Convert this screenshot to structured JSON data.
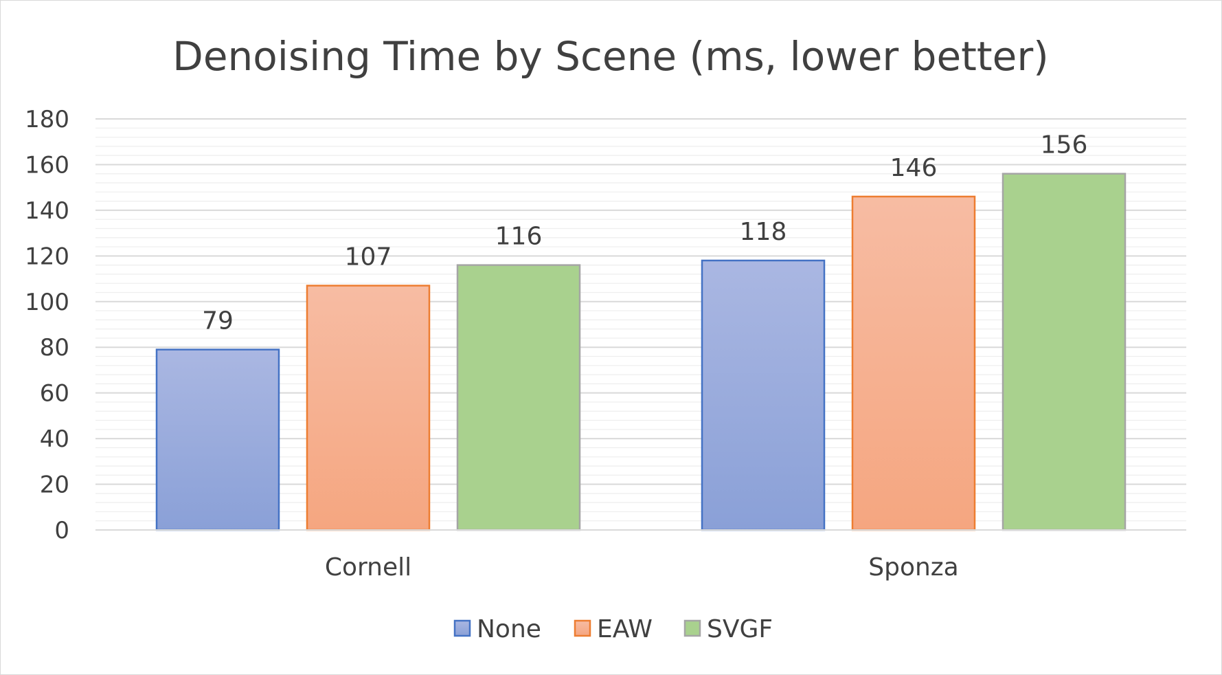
{
  "chart_data": {
    "type": "bar",
    "title": "Denoising Time by Scene (ms, lower better)",
    "categories": [
      "Cornell",
      "Sponza"
    ],
    "series": [
      {
        "name": "None",
        "values": [
          79,
          118
        ]
      },
      {
        "name": "EAW",
        "values": [
          107,
          146
        ]
      },
      {
        "name": "SVGF",
        "values": [
          116,
          156
        ]
      }
    ],
    "ylim": [
      0,
      180
    ],
    "yticks": [
      0,
      20,
      40,
      60,
      80,
      100,
      120,
      140,
      160,
      180
    ],
    "minor_gridline_step": 4,
    "grid": true,
    "data_labels": true,
    "legend_position": "bottom",
    "colors": {
      "None": {
        "fill_top": "#aab7e2",
        "fill_bottom": "#8aa0d7",
        "stroke": "#4472c4"
      },
      "EAW": {
        "fill_top": "#f7bca3",
        "fill_bottom": "#f5a680",
        "stroke": "#ed7d31"
      },
      "SVGF": {
        "fill_top": "#a9d18e",
        "fill_bottom": "#a9d18e",
        "stroke": "#a5a5a5"
      },
      "gridline_major": "#d9d9d9",
      "gridline_minor": "#eeeeee",
      "axis": "#d9d9d9",
      "text": "#404040"
    }
  }
}
